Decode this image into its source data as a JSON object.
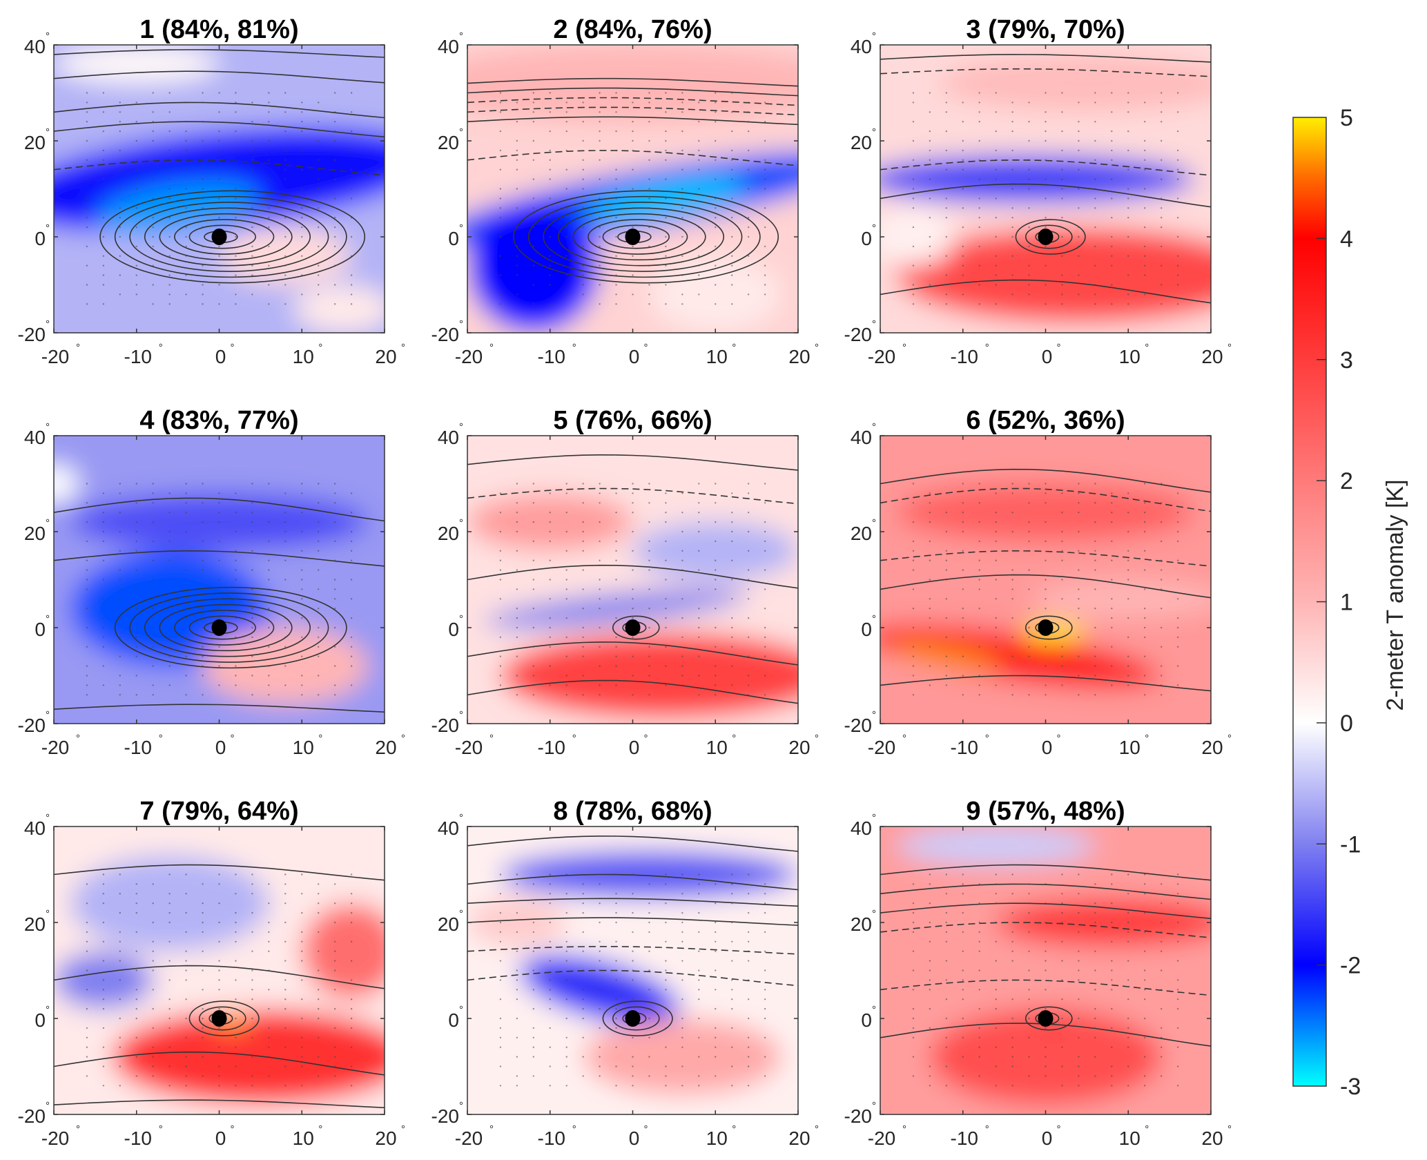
{
  "chart_data": {
    "type": "heatmap",
    "layout": "3x3 small multiples with shared colorbar",
    "panels": [
      {
        "id": 1,
        "title": "1 (84%, 81%)",
        "pct_a": 84,
        "pct_b": 81,
        "pattern": "cold",
        "cold_strength": 2.6,
        "warm_strength": 0.5,
        "hot_core": 0.0
      },
      {
        "id": 2,
        "title": "2 (84%, 76%)",
        "pct_a": 84,
        "pct_b": 76,
        "pattern": "cold-band-warm-north",
        "cold_strength": 2.8,
        "warm_strength": 1.0,
        "hot_core": 0.0
      },
      {
        "id": 3,
        "title": "3 (79%, 70%)",
        "pct_a": 79,
        "pct_b": 70,
        "pattern": "warm-south",
        "cold_strength": 1.5,
        "warm_strength": 2.8,
        "hot_core": 4.2
      },
      {
        "id": 4,
        "title": "4 (83%, 77%)",
        "pct_a": 83,
        "pct_b": 77,
        "pattern": "cold-west",
        "cold_strength": 2.3,
        "warm_strength": 1.0,
        "hot_core": 0.0
      },
      {
        "id": 5,
        "title": "5 (76%, 66%)",
        "pct_a": 76,
        "pct_b": 66,
        "pattern": "warm-south",
        "cold_strength": 1.0,
        "warm_strength": 2.9,
        "hot_core": 0.0
      },
      {
        "id": 6,
        "title": "6 (52%, 36%)",
        "pct_a": 52,
        "pct_b": 36,
        "pattern": "hot",
        "cold_strength": 0.0,
        "warm_strength": 3.5,
        "hot_core": 5.0
      },
      {
        "id": 7,
        "title": "7 (79%, 64%)",
        "pct_a": 79,
        "pct_b": 64,
        "pattern": "warm-southeast",
        "cold_strength": 1.0,
        "warm_strength": 3.2,
        "hot_core": 4.8
      },
      {
        "id": 8,
        "title": "8 (78%, 68%)",
        "pct_a": 78,
        "pct_b": 68,
        "pattern": "mixed",
        "cold_strength": 1.6,
        "warm_strength": 1.2,
        "hot_core": 0.0
      },
      {
        "id": 9,
        "title": "9 (57%, 48%)",
        "pct_a": 57,
        "pct_b": 48,
        "pattern": "warm-all",
        "cold_strength": 0.4,
        "warm_strength": 3.0,
        "hot_core": 3.8
      }
    ],
    "x_ticks": [
      "-20",
      "-10",
      "0",
      "10",
      "20"
    ],
    "x_tick_values": [
      -20,
      -10,
      0,
      10,
      20
    ],
    "y_ticks": [
      "40",
      "20",
      "0",
      "-20"
    ],
    "y_tick_values": [
      40,
      20,
      0,
      -20
    ],
    "degree_symbol": "°",
    "xlim": [
      -20,
      20
    ],
    "ylim": [
      -20,
      40
    ],
    "marker": {
      "x": 0,
      "y": 0,
      "color": "#000000"
    },
    "colorbar": {
      "label": "2-meter T anomaly [K]",
      "min": -3,
      "max": 5,
      "ticks": [
        "5",
        "4",
        "3",
        "2",
        "1",
        "0",
        "-1",
        "-2",
        "-3"
      ],
      "tick_values": [
        5,
        4,
        3,
        2,
        1,
        0,
        -1,
        -2,
        -3
      ],
      "colors": {
        "neg3": "#00ffff",
        "neg2": "#0000ff",
        "neg1": "#8080f0",
        "zero": "#ffffff",
        "pos2": "#ff7a7a",
        "pos4": "#ff0000",
        "pos45": "#ff6a00",
        "pos5": "#ffee00"
      }
    },
    "grid": false
  }
}
